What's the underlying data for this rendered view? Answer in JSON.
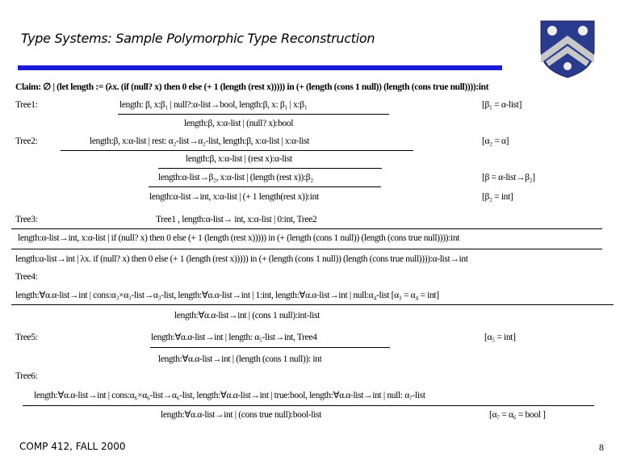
{
  "title": "Type Systems: Sample Polymorphic Type Reconstruction",
  "claim": "Claim: ∅ | (let length := (λx. (if (null? x) then 0 else (+ 1 (length (rest x))))) in (+ (length (cons 1 null)) (length (cons true null)))):int",
  "tree1": {
    "label": "Tree1:",
    "premise": "length: β, x:β₁ | null?:α-list→bool,   length:β, x: β₁ | x:β₁",
    "subst": "[β₁ = α-list]",
    "conclusion": "length:β,  x:α-list | (null? x):bool"
  },
  "tree2": {
    "label": "Tree2:",
    "premise": "length:β, x:α-list | rest: α₂-list→α₂-list,  length:β, x:α-list | x:α-list",
    "subst1": "[α₂ = α]",
    "step1": "length:β, x:α-list | (rest x):α-list",
    "step2": "length:α-list→β₂, x:α-list | (length (rest x)):β₂",
    "subst2": "[β =  α-list→β₂]",
    "step3": "length:α-list→int, x:α-list | (+ 1 length(rest x)):int",
    "subst3": "[β₂ = int]"
  },
  "tree3": {
    "label": "Tree3:",
    "premise": "Tree1 ,    length:α-list→ int, x:α-list | 0:int,     Tree2",
    "step1": "length:α-list→int, x:α-list | if (null? x) then 0 else (+ 1 (length (rest x))))) in (+ (length (cons 1 null)) (length (cons true null)))):int",
    "step2": "length:α-list→int | λx. if (null? x) then 0 else (+ 1 (length (rest x))))) in (+ (length (cons 1 null)) (length (cons true null)))):α-list→int"
  },
  "tree4": {
    "label": "Tree4:",
    "premise": "length:∀α.α-list→int  | cons:α₃×α₃-list→α₃-list, length:∀α.α-list→int | 1:int, length:∀α.α-list→int | null:α₄-list  [α₃ = α₄ = int]",
    "conclusion": "length:∀α.α-list→int  | (cons 1 null):int-list"
  },
  "tree5": {
    "label": "Tree5:",
    "premise": "length:∀α.α-list→int | length: α₅-list→int,   Tree4",
    "subst": "[α₅ = int]",
    "conclusion": "length:∀α.α-list→int |  (length (cons 1 null)): int"
  },
  "tree6": {
    "label": "Tree6:",
    "premise": "length:∀α.α-list→int  | cons:α₆×α₆-list→α₆-list, length:∀α.α-list→int | true:bool, length:∀α.α-list→int | null: α₇-list",
    "conclusion": "length:∀α.α-list→int  | (cons true null):bool-list",
    "subst": "[α₇ = α₆ = bool ]"
  },
  "footer": "COMP 412, FALL 2000",
  "page_number": "8",
  "colors": {
    "accent_bar": "#1a1adb",
    "logo_blue": "#2a3a8c"
  }
}
